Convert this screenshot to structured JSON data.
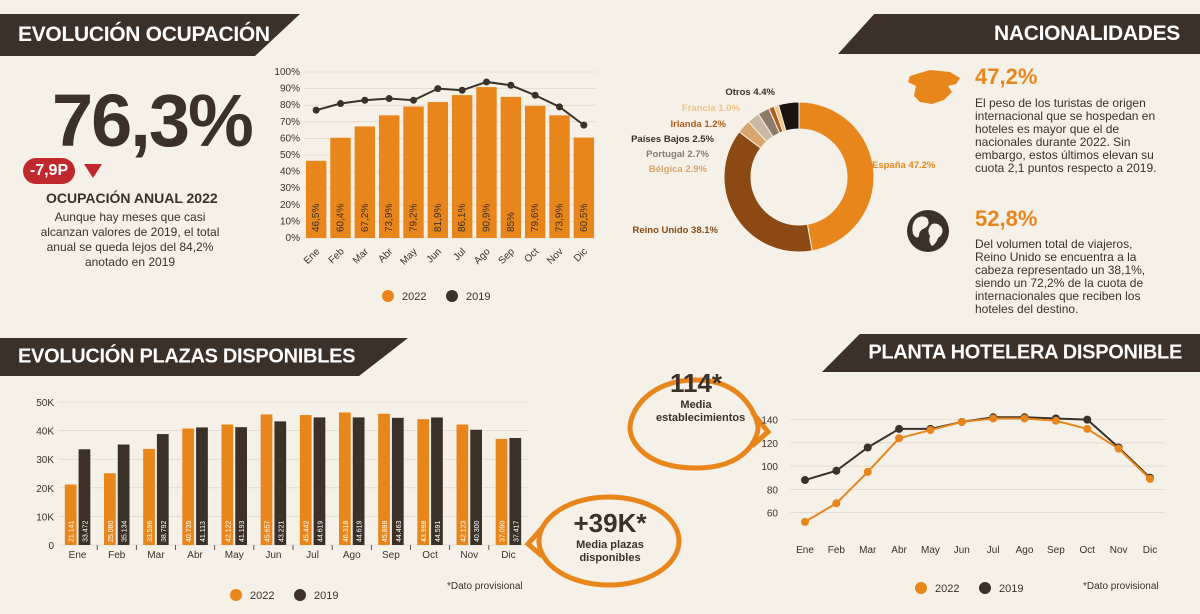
{
  "sections": {
    "occupancy_title": "EVOLUCIÓN OCUPACIÓN",
    "nationalities_title": "NACIONALIDADES",
    "places_title": "EVOLUCIÓN PLAZAS DISPONIBLES",
    "hotels_title": "PLANTA HOTELERA DISPONIBLE"
  },
  "occupancy": {
    "big_value": "76,3%",
    "delta": "-7,9P",
    "label": "OCUPACIÓN ANUAL 2022",
    "description": "Aunque hay meses que casi alcanzan valores de 2019, el total anual se queda lejos del 84,2% anotado en 2019"
  },
  "nationalities": {
    "spain_pct": "47,2%",
    "spain_text": "El peso de los turistas de origen internacional que se hospedan en hoteles es mayor que el de nacionales durante 2022. Sin embargo, estos últimos elevan su cuota 2,1 puntos respecto a 2019.",
    "uk_pct": "52,8%",
    "uk_text": "Del volumen total de viajeros, Reino Unido se encuentra a la cabeza representado un 38,1%, siendo un 72,2% de la cuota de internacionales que reciben los hoteles del destino."
  },
  "bubbles": {
    "establishments_value": "114*",
    "establishments_label": "Media establecimientos",
    "places_value": "+39K*",
    "places_label": "Media plazas disponibles"
  },
  "notes": {
    "provisional_1": "*Dato provisional",
    "provisional_2": "*Dato provisional"
  },
  "colors": {
    "orange": "#e8861c",
    "dark": "#3b3129",
    "brown": "#8b4a14",
    "bg": "#f5f0e8"
  },
  "chart_data": [
    {
      "id": "occupancy",
      "type": "bar",
      "categories": [
        "Ene",
        "Feb",
        "Mar",
        "Abr",
        "May",
        "Jun",
        "Jul",
        "Ago",
        "Sep",
        "Oct",
        "Nov",
        "Dic"
      ],
      "series": [
        {
          "name": "2022",
          "type": "bar",
          "values": [
            46.5,
            60.4,
            67.2,
            73.9,
            79.2,
            81.9,
            86.1,
            90.9,
            85,
            79.6,
            73.9,
            60.5
          ],
          "labels": [
            "46,5%",
            "60,4%",
            "67,2%",
            "73,9%",
            "79,2%",
            "81,9%",
            "86,1%",
            "90,9%",
            "85%",
            "79,6%",
            "73,9%",
            "60,5%"
          ]
        },
        {
          "name": "2019",
          "type": "line",
          "values": [
            77,
            81,
            83,
            84,
            83,
            90,
            89,
            94,
            92,
            86,
            79,
            68
          ]
        }
      ],
      "yticks": [
        "0%",
        "10%",
        "20%",
        "30%",
        "40%",
        "50%",
        "60%",
        "70%",
        "80%",
        "90%",
        "100%"
      ],
      "ylim": [
        0,
        100
      ],
      "legend": [
        "2022",
        "2019"
      ]
    },
    {
      "id": "nationalities",
      "type": "pie",
      "slices": [
        {
          "label": "España 47.2%",
          "value": 47.2
        },
        {
          "label": "Reino Unido 38.1%",
          "value": 38.1
        },
        {
          "label": "Bélgica 2.9%",
          "value": 2.9
        },
        {
          "label": "Portugal 2.7%",
          "value": 2.7
        },
        {
          "label": "Países Bajos 2.5%",
          "value": 2.5
        },
        {
          "label": "Irlanda 1.2%",
          "value": 1.2
        },
        {
          "label": "Francia 1.0%",
          "value": 1.0
        },
        {
          "label": "Otros 4.4%",
          "value": 4.4
        }
      ]
    },
    {
      "id": "places",
      "type": "bar",
      "categories": [
        "Ene",
        "Feb",
        "Mar",
        "Abr",
        "May",
        "Jun",
        "Jul",
        "Ago",
        "Sep",
        "Oct",
        "Nov",
        "Dic"
      ],
      "series": [
        {
          "name": "2022",
          "values": [
            21141,
            25080,
            33596,
            40735,
            42122,
            45657,
            45442,
            46318,
            45899,
            43998,
            42123,
            37090
          ],
          "labels": [
            "21.141",
            "25.080",
            "33.596",
            "40.735",
            "42.122",
            "45.657",
            "45.442",
            "46.318",
            "45.899",
            "43.998",
            "42.123",
            "37.090"
          ]
        },
        {
          "name": "2019",
          "values": [
            33472,
            35134,
            38792,
            41113,
            41193,
            43221,
            44619,
            44619,
            44463,
            44591,
            40300,
            37417
          ],
          "labels": [
            "33.472",
            "35.134",
            "38.792",
            "41.113",
            "41.193",
            "43.221",
            "44.619",
            "44.619",
            "44.463",
            "44.591",
            "40.300",
            "37.417"
          ]
        }
      ],
      "yticks": [
        "0",
        "10K",
        "20K",
        "30K",
        "40K",
        "50K"
      ],
      "ylim": [
        0,
        50000
      ],
      "legend": [
        "2022",
        "2019"
      ]
    },
    {
      "id": "hotels",
      "type": "line",
      "categories": [
        "Ene",
        "Feb",
        "Mar",
        "Abr",
        "May",
        "Jun",
        "Jul",
        "Ago",
        "Sep",
        "Oct",
        "Nov",
        "Dic"
      ],
      "series": [
        {
          "name": "2022",
          "values": [
            52,
            68,
            95,
            124,
            131,
            138,
            141,
            141,
            139,
            132,
            115,
            89
          ]
        },
        {
          "name": "2019",
          "values": [
            88,
            96,
            116,
            132,
            132,
            138,
            142,
            142,
            141,
            140,
            116,
            90
          ]
        }
      ],
      "yticks": [
        "60",
        "80",
        "100",
        "120",
        "140"
      ],
      "ylim": [
        45,
        150
      ],
      "legend": [
        "2022",
        "2019"
      ]
    }
  ]
}
